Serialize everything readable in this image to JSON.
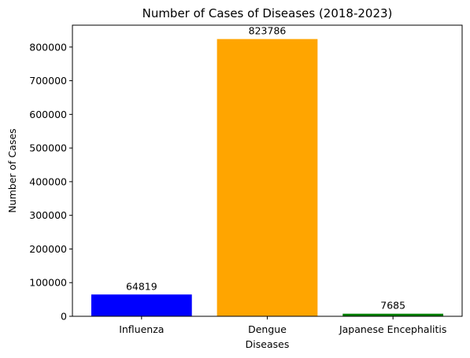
{
  "chart_data": {
    "type": "bar",
    "title": "Number of Cases of Diseases (2018-2023)",
    "xlabel": "Diseases",
    "ylabel": "Number of Cases",
    "categories": [
      "Influenza",
      "Dengue",
      "Japanese Encephalitis"
    ],
    "values": [
      64819,
      823786,
      7685
    ],
    "data_labels": [
      "64819",
      "823786",
      "7685"
    ],
    "colors": [
      "#0000ff",
      "#ffa500",
      "#008000"
    ],
    "ylim": [
      0,
      865000
    ],
    "yticks": [
      0,
      100000,
      200000,
      300000,
      400000,
      500000,
      600000,
      700000,
      800000
    ],
    "ytick_labels": [
      "0",
      "100000",
      "200000",
      "300000",
      "400000",
      "500000",
      "600000",
      "700000",
      "800000"
    ],
    "grid": false,
    "legend": "none"
  }
}
